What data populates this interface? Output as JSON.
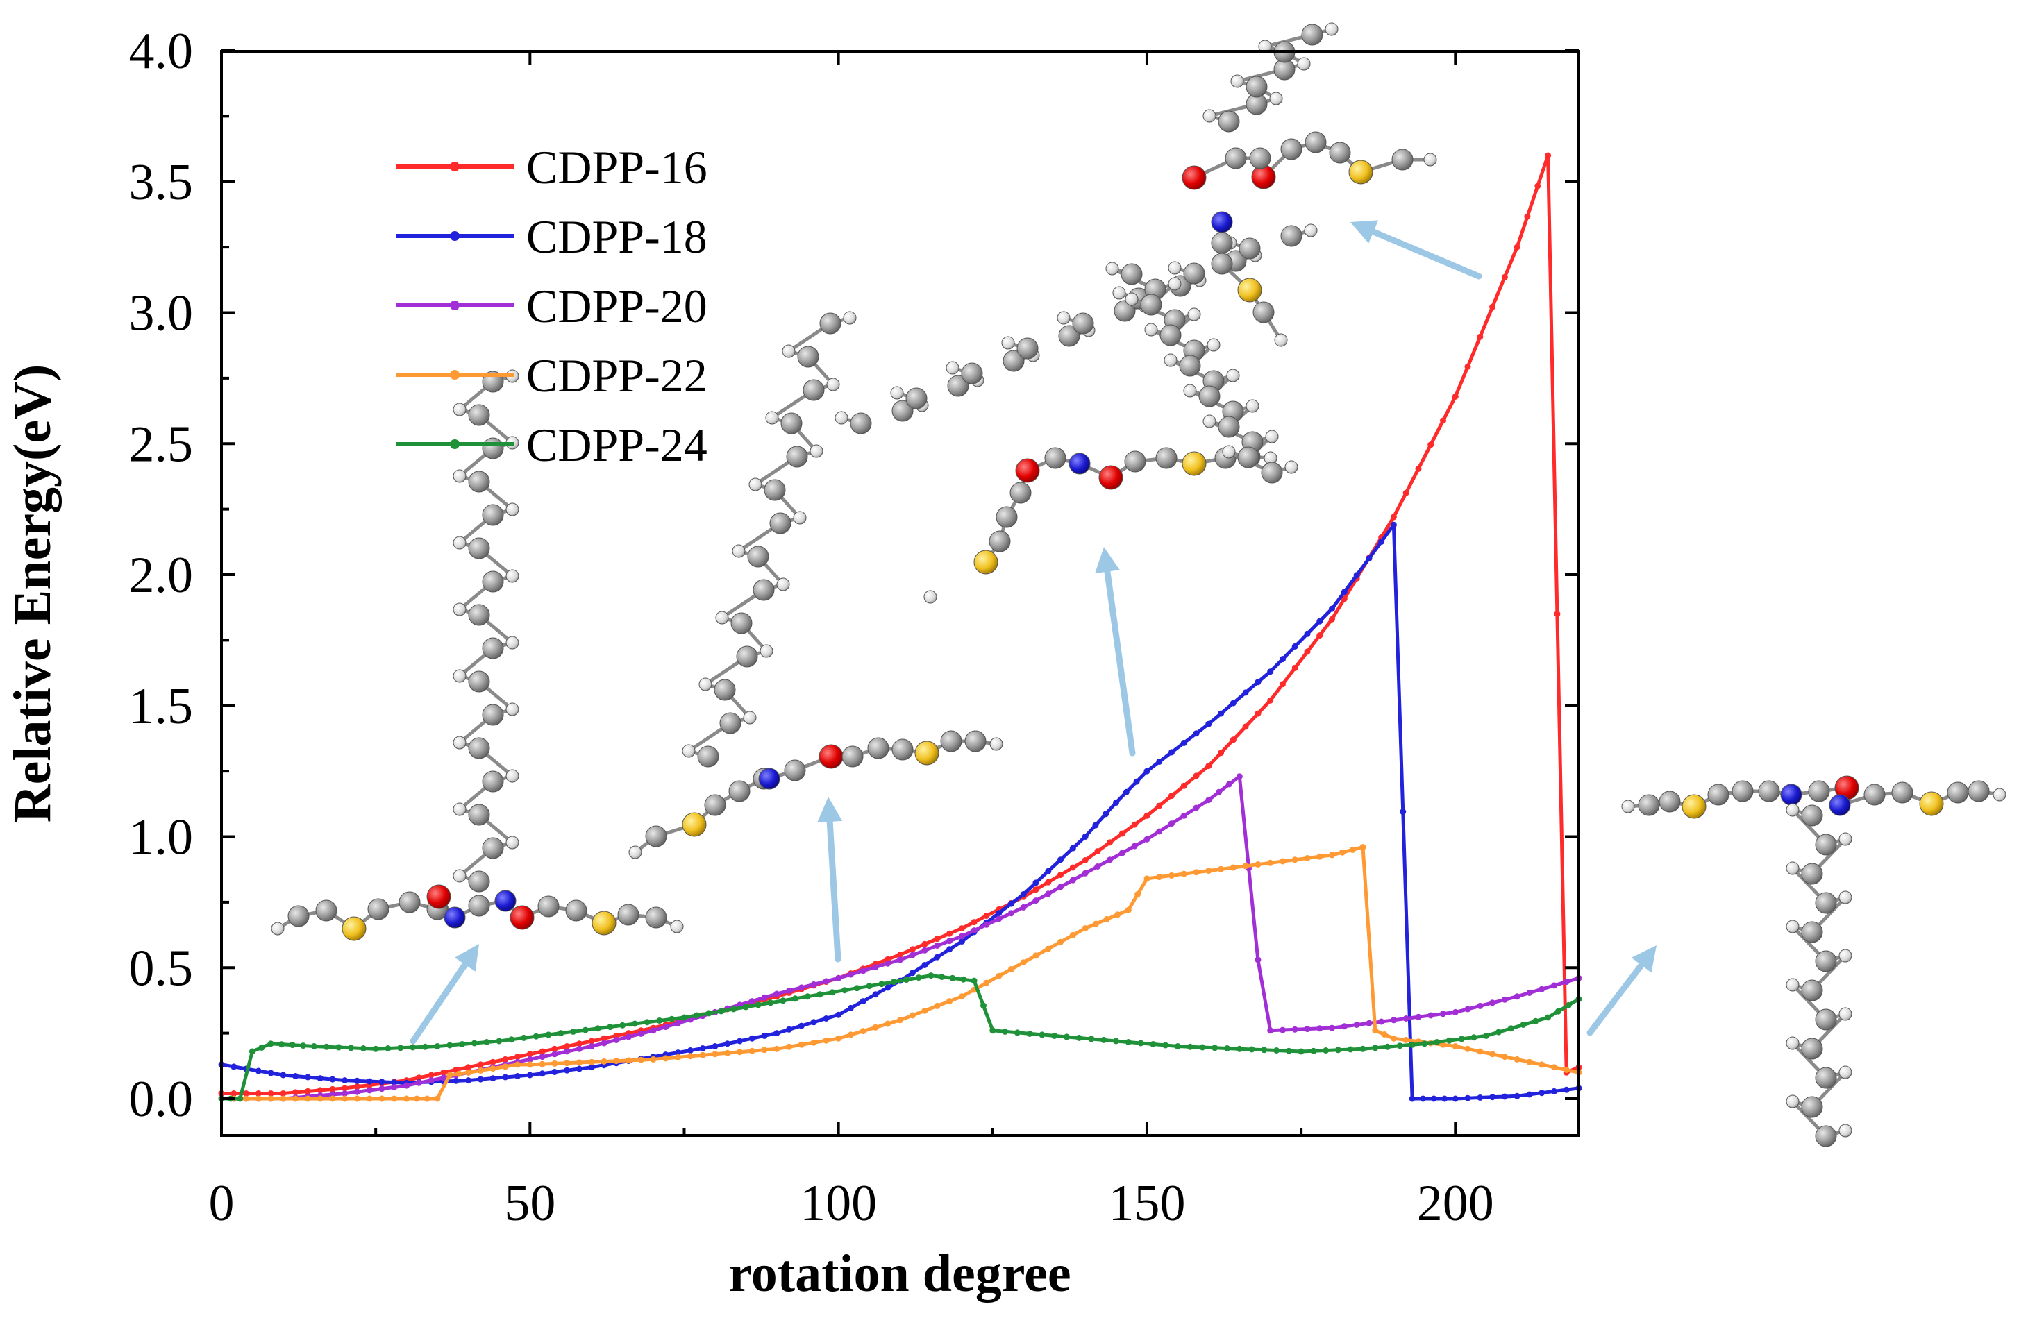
{
  "chart_data": {
    "type": "line",
    "xlabel": "rotation degree",
    "ylabel": "Relative Energy(eV)",
    "xlim": [
      0,
      220
    ],
    "ylim": [
      -0.15,
      4.0
    ],
    "xticks": [
      0,
      50,
      100,
      150,
      200
    ],
    "yticks": [
      0.0,
      0.5,
      1.0,
      1.5,
      2.0,
      2.5,
      3.0,
      3.5,
      4.0
    ],
    "xtick_labels": [
      "0",
      "50",
      "100",
      "150",
      "200"
    ],
    "ytick_labels": [
      "0.0",
      "0.5",
      "1.0",
      "1.5",
      "2.0",
      "2.5",
      "3.0",
      "3.5",
      "4.0"
    ],
    "legend_position": "top-left",
    "series": [
      {
        "name": "CDPP-16",
        "color": "#ff2a2a",
        "points": [
          [
            0,
            0.02
          ],
          [
            10,
            0.02
          ],
          [
            20,
            0.04
          ],
          [
            30,
            0.07
          ],
          [
            40,
            0.12
          ],
          [
            50,
            0.17
          ],
          [
            60,
            0.22
          ],
          [
            70,
            0.27
          ],
          [
            80,
            0.33
          ],
          [
            90,
            0.39
          ],
          [
            100,
            0.46
          ],
          [
            110,
            0.55
          ],
          [
            120,
            0.65
          ],
          [
            130,
            0.77
          ],
          [
            140,
            0.91
          ],
          [
            150,
            1.08
          ],
          [
            160,
            1.27
          ],
          [
            170,
            1.52
          ],
          [
            180,
            1.83
          ],
          [
            190,
            2.22
          ],
          [
            200,
            2.68
          ],
          [
            210,
            3.25
          ],
          [
            215,
            3.6
          ],
          [
            218,
            0.1
          ],
          [
            220,
            0.12
          ]
        ]
      },
      {
        "name": "CDPP-18",
        "color": "#2222dd",
        "points": [
          [
            0,
            0.13
          ],
          [
            10,
            0.09
          ],
          [
            20,
            0.07
          ],
          [
            30,
            0.06
          ],
          [
            40,
            0.07
          ],
          [
            50,
            0.09
          ],
          [
            60,
            0.12
          ],
          [
            70,
            0.16
          ],
          [
            80,
            0.2
          ],
          [
            90,
            0.25
          ],
          [
            100,
            0.32
          ],
          [
            110,
            0.45
          ],
          [
            120,
            0.6
          ],
          [
            130,
            0.78
          ],
          [
            140,
            1.0
          ],
          [
            145,
            1.13
          ],
          [
            150,
            1.25
          ],
          [
            160,
            1.43
          ],
          [
            170,
            1.63
          ],
          [
            180,
            1.87
          ],
          [
            190,
            2.19
          ],
          [
            193,
            0.0
          ],
          [
            200,
            0.0
          ],
          [
            210,
            0.01
          ],
          [
            220,
            0.04
          ]
        ]
      },
      {
        "name": "CDPP-20",
        "color": "#a22ed6",
        "points": [
          [
            0,
            0.0
          ],
          [
            10,
            0.0
          ],
          [
            20,
            0.02
          ],
          [
            30,
            0.05
          ],
          [
            40,
            0.1
          ],
          [
            50,
            0.15
          ],
          [
            60,
            0.2
          ],
          [
            70,
            0.26
          ],
          [
            80,
            0.33
          ],
          [
            90,
            0.4
          ],
          [
            100,
            0.46
          ],
          [
            110,
            0.53
          ],
          [
            120,
            0.62
          ],
          [
            130,
            0.73
          ],
          [
            140,
            0.86
          ],
          [
            150,
            0.99
          ],
          [
            160,
            1.14
          ],
          [
            165,
            1.23
          ],
          [
            168,
            0.53
          ],
          [
            170,
            0.26
          ],
          [
            180,
            0.27
          ],
          [
            190,
            0.3
          ],
          [
            200,
            0.33
          ],
          [
            210,
            0.39
          ],
          [
            220,
            0.46
          ]
        ]
      },
      {
        "name": "CDPP-22",
        "color": "#ff9933",
        "points": [
          [
            0,
            0.0
          ],
          [
            10,
            0.0
          ],
          [
            20,
            0.0
          ],
          [
            30,
            0.0
          ],
          [
            35,
            0.0
          ],
          [
            37,
            0.09
          ],
          [
            40,
            0.1
          ],
          [
            48,
            0.13
          ],
          [
            50,
            0.13
          ],
          [
            60,
            0.14
          ],
          [
            70,
            0.15
          ],
          [
            80,
            0.17
          ],
          [
            90,
            0.19
          ],
          [
            100,
            0.23
          ],
          [
            110,
            0.3
          ],
          [
            120,
            0.39
          ],
          [
            130,
            0.52
          ],
          [
            140,
            0.65
          ],
          [
            147,
            0.72
          ],
          [
            150,
            0.84
          ],
          [
            160,
            0.87
          ],
          [
            170,
            0.9
          ],
          [
            180,
            0.93
          ],
          [
            185,
            0.96
          ],
          [
            187,
            0.26
          ],
          [
            190,
            0.23
          ],
          [
            200,
            0.2
          ],
          [
            210,
            0.15
          ],
          [
            220,
            0.1
          ]
        ]
      },
      {
        "name": "CDPP-24",
        "color": "#1f9138",
        "points": [
          [
            0,
            0.0
          ],
          [
            3,
            0.0
          ],
          [
            5,
            0.18
          ],
          [
            8,
            0.21
          ],
          [
            15,
            0.2
          ],
          [
            25,
            0.19
          ],
          [
            35,
            0.2
          ],
          [
            45,
            0.22
          ],
          [
            55,
            0.25
          ],
          [
            65,
            0.28
          ],
          [
            75,
            0.31
          ],
          [
            85,
            0.35
          ],
          [
            95,
            0.39
          ],
          [
            105,
            0.43
          ],
          [
            115,
            0.47
          ],
          [
            122,
            0.45
          ],
          [
            125,
            0.26
          ],
          [
            135,
            0.24
          ],
          [
            145,
            0.22
          ],
          [
            155,
            0.2
          ],
          [
            165,
            0.19
          ],
          [
            175,
            0.18
          ],
          [
            185,
            0.19
          ],
          [
            195,
            0.21
          ],
          [
            205,
            0.24
          ],
          [
            215,
            0.31
          ],
          [
            220,
            0.38
          ]
        ]
      }
    ]
  }
}
